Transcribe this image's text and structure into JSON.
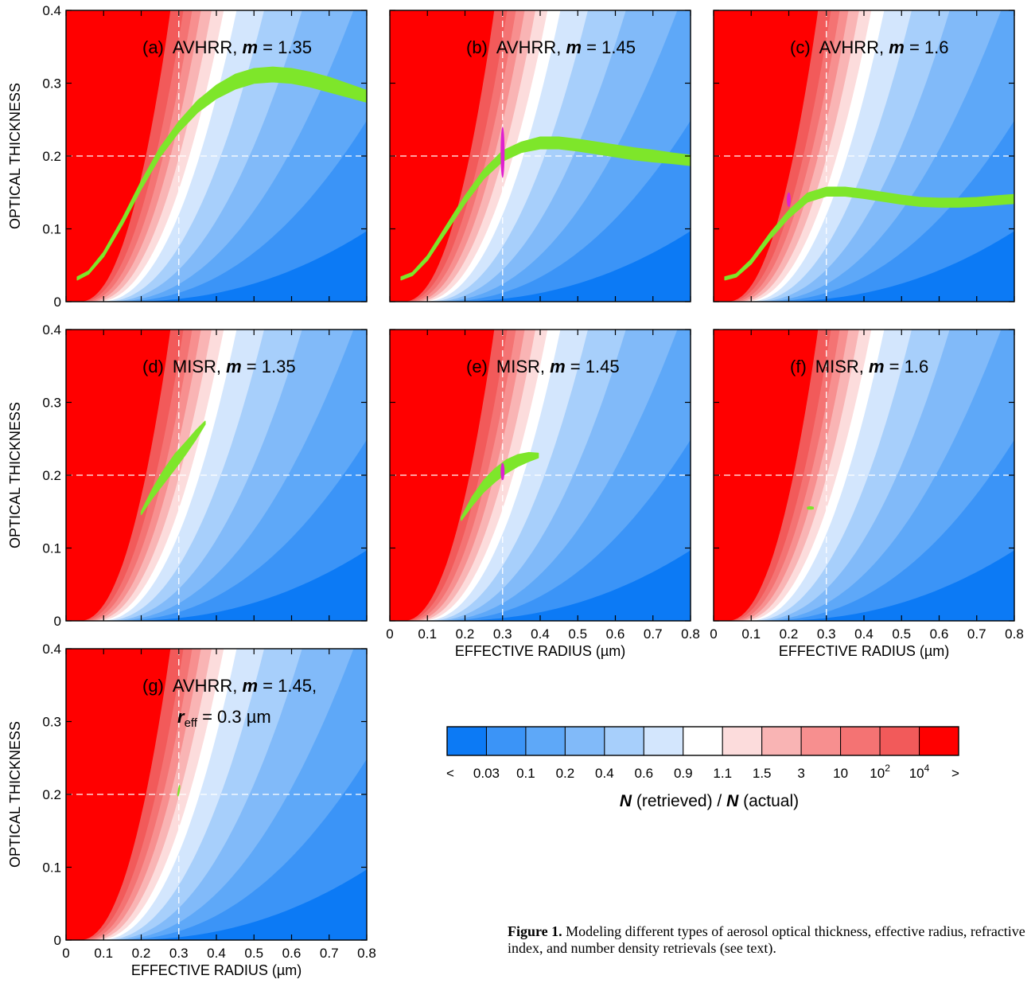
{
  "chart_data": [
    {
      "type": "heatmap",
      "panel_label": "(a)",
      "instrument": "AVHRR",
      "m_symbol": "m",
      "m_value": "= 1.35",
      "xlim": [
        0,
        0.8
      ],
      "ylim": [
        0,
        0.4
      ],
      "ylabel": "OPTICAL THICKNESS",
      "xlabel": "",
      "x_ticks": [],
      "y_ticks": [
        "0",
        "0.1",
        "0.2",
        "0.3",
        "0.4"
      ],
      "true_point": {
        "x": 0.3,
        "y": 0.2
      },
      "retrieved_band": {
        "color": "#7ee62a",
        "x": [
          0.03,
          0.06,
          0.1,
          0.15,
          0.2,
          0.25,
          0.3,
          0.35,
          0.4,
          0.45,
          0.5,
          0.55,
          0.6,
          0.65,
          0.7,
          0.75,
          0.8
        ],
        "y": [
          0.032,
          0.04,
          0.065,
          0.11,
          0.16,
          0.205,
          0.24,
          0.268,
          0.288,
          0.302,
          0.31,
          0.312,
          0.31,
          0.305,
          0.298,
          0.29,
          0.282
        ],
        "half_width": [
          0.002,
          0.002,
          0.003,
          0.004,
          0.005,
          0.006,
          0.007,
          0.008,
          0.009,
          0.01,
          0.01,
          0.01,
          0.01,
          0.01,
          0.01,
          0.009,
          0.008
        ]
      },
      "retrieved_point": null
    },
    {
      "type": "heatmap",
      "panel_label": "(b)",
      "instrument": "AVHRR",
      "m_symbol": "m",
      "m_value": "= 1.45",
      "xlim": [
        0,
        0.8
      ],
      "ylim": [
        0,
        0.4
      ],
      "ylabel": "",
      "xlabel": "",
      "x_ticks": [],
      "y_ticks": [],
      "true_point": {
        "x": 0.3,
        "y": 0.2
      },
      "retrieved_band": {
        "color": "#7ee62a",
        "x": [
          0.03,
          0.06,
          0.1,
          0.15,
          0.2,
          0.25,
          0.3,
          0.35,
          0.4,
          0.45,
          0.5,
          0.55,
          0.6,
          0.65,
          0.7,
          0.75,
          0.8
        ],
        "y": [
          0.032,
          0.038,
          0.06,
          0.1,
          0.14,
          0.175,
          0.2,
          0.212,
          0.218,
          0.218,
          0.215,
          0.211,
          0.207,
          0.203,
          0.2,
          0.197,
          0.194
        ],
        "half_width": [
          0.002,
          0.002,
          0.003,
          0.004,
          0.005,
          0.006,
          0.007,
          0.007,
          0.008,
          0.008,
          0.008,
          0.008,
          0.008,
          0.008,
          0.008,
          0.007,
          0.007
        ]
      },
      "retrieved_point": {
        "x": 0.3,
        "y": 0.205,
        "half_height": 0.035,
        "color": "#e020d0"
      }
    },
    {
      "type": "heatmap",
      "panel_label": "(c)",
      "instrument": "AVHRR",
      "m_symbol": "m",
      "m_value": "= 1.6",
      "xlim": [
        0,
        0.8
      ],
      "ylim": [
        0,
        0.4
      ],
      "ylabel": "",
      "xlabel": "",
      "x_ticks": [],
      "y_ticks": [],
      "true_point": {
        "x": 0.3,
        "y": 0.2
      },
      "retrieved_band": {
        "color": "#7ee62a",
        "x": [
          0.03,
          0.06,
          0.1,
          0.15,
          0.2,
          0.25,
          0.3,
          0.35,
          0.4,
          0.45,
          0.5,
          0.55,
          0.6,
          0.65,
          0.7,
          0.75,
          0.8
        ],
        "y": [
          0.032,
          0.036,
          0.055,
          0.09,
          0.12,
          0.143,
          0.151,
          0.151,
          0.148,
          0.144,
          0.14,
          0.137,
          0.136,
          0.136,
          0.137,
          0.139,
          0.141
        ],
        "half_width": [
          0.002,
          0.002,
          0.003,
          0.004,
          0.005,
          0.006,
          0.006,
          0.006,
          0.006,
          0.006,
          0.006,
          0.006,
          0.006,
          0.006,
          0.006,
          0.006,
          0.006
        ]
      },
      "retrieved_point": {
        "x": 0.2,
        "y": 0.14,
        "half_height": 0.01,
        "color": "#e020d0"
      }
    },
    {
      "type": "heatmap",
      "panel_label": "(d)",
      "instrument": "MISR",
      "m_symbol": "m",
      "m_value": "= 1.35",
      "xlim": [
        0,
        0.8
      ],
      "ylim": [
        0,
        0.4
      ],
      "ylabel": "OPTICAL THICKNESS",
      "xlabel": "",
      "x_ticks": [],
      "y_ticks": [
        "0",
        "0.1",
        "0.2",
        "0.3",
        "0.4"
      ],
      "true_point": {
        "x": 0.3,
        "y": 0.2
      },
      "retrieved_band": {
        "color": "#7ee62a",
        "x": [
          0.2,
          0.23,
          0.26,
          0.29,
          0.32,
          0.345,
          0.37
        ],
        "y": [
          0.148,
          0.175,
          0.198,
          0.219,
          0.238,
          0.255,
          0.272
        ],
        "half_width": [
          0.002,
          0.006,
          0.009,
          0.01,
          0.008,
          0.006,
          0.002
        ]
      },
      "retrieved_point": null
    },
    {
      "type": "heatmap",
      "panel_label": "(e)",
      "instrument": "MISR",
      "m_symbol": "m",
      "m_value": "= 1.45",
      "xlim": [
        0,
        0.8
      ],
      "ylim": [
        0,
        0.4
      ],
      "ylabel": "",
      "xlabel": "EFFECTIVE RADIUS (µm)",
      "x_ticks": [
        "0",
        "0.1",
        "0.2",
        "0.3",
        "0.4",
        "0.5",
        "0.6",
        "0.7",
        "0.8"
      ],
      "y_ticks": [],
      "true_point": {
        "x": 0.3,
        "y": 0.2
      },
      "retrieved_band": {
        "color": "#7ee62a",
        "x": [
          0.19,
          0.22,
          0.25,
          0.28,
          0.31,
          0.34,
          0.37,
          0.395
        ],
        "y": [
          0.14,
          0.165,
          0.185,
          0.2,
          0.212,
          0.22,
          0.225,
          0.227
        ],
        "half_width": [
          0.002,
          0.006,
          0.008,
          0.009,
          0.009,
          0.008,
          0.006,
          0.003
        ]
      },
      "retrieved_point": {
        "x": 0.3,
        "y": 0.205,
        "half_height": 0.012,
        "color": "#e020d0"
      }
    },
    {
      "type": "heatmap",
      "panel_label": "(f)",
      "instrument": "MISR",
      "m_symbol": "m",
      "m_value": "= 1.6",
      "xlim": [
        0,
        0.8
      ],
      "ylim": [
        0,
        0.4
      ],
      "ylabel": "",
      "xlabel": "EFFECTIVE RADIUS (µm)",
      "x_ticks": [
        "0",
        "0.1",
        "0.2",
        "0.3",
        "0.4",
        "0.5",
        "0.6",
        "0.7",
        "0.8"
      ],
      "y_ticks": [],
      "true_point": {
        "x": 0.3,
        "y": 0.2
      },
      "retrieved_band": {
        "color": "#7ee62a",
        "x": [
          0.25,
          0.255,
          0.26,
          0.265
        ],
        "y": [
          0.155,
          0.155,
          0.155,
          0.155
        ],
        "half_width": [
          0.001,
          0.0015,
          0.0015,
          0.001
        ]
      },
      "retrieved_point": null
    },
    {
      "type": "heatmap",
      "panel_label": "(g)",
      "instrument": "AVHRR",
      "m_symbol": "m",
      "m_value": "= 1.45,",
      "reff_line": {
        "symbol": "r",
        "subscript": "eff",
        "value": "= 0.3 µm"
      },
      "xlim": [
        0,
        0.8
      ],
      "ylim": [
        0,
        0.4
      ],
      "ylabel": "OPTICAL THICKNESS",
      "xlabel": "EFFECTIVE RADIUS (µm)",
      "x_ticks": [
        "0",
        "0.1",
        "0.2",
        "0.3",
        "0.4",
        "0.5",
        "0.6",
        "0.7",
        "0.8"
      ],
      "y_ticks": [
        "0",
        "0.1",
        "0.2",
        "0.3",
        "0.4"
      ],
      "true_point": {
        "x": 0.3,
        "y": 0.2
      },
      "retrieved_band": {
        "color": "#7ee62a",
        "x": [
          0.298,
          0.3,
          0.302
        ],
        "y": [
          0.2,
          0.205,
          0.21
        ],
        "half_width": [
          0.002,
          0.003,
          0.002
        ]
      },
      "retrieved_point": null
    }
  ],
  "colorbar": {
    "title_symbol": "N",
    "title_middle": " (retrieved) / ",
    "title_symbol2": "N",
    "title_end": " (actual)",
    "colors": [
      "#0c7af5",
      "#3b94f7",
      "#5ea8f8",
      "#81baf9",
      "#a7cffb",
      "#d3e6fd",
      "#ffffff",
      "#fcdcdc",
      "#f9b4b4",
      "#f78f8f",
      "#f47373",
      "#f25a5a",
      "#ff0000"
    ],
    "labels": [
      "<",
      "0.03",
      "0.1",
      "0.2",
      "0.4",
      "0.6",
      "0.9",
      "1.1",
      "1.5",
      "3",
      "10",
      "10",
      "10",
      ">"
    ],
    "label_superscripts": [
      "",
      "",
      "",
      "",
      "",
      "",
      "",
      "",
      "",
      "",
      "",
      "2",
      "4",
      ""
    ]
  },
  "caption": {
    "label": "Figure 1.",
    "text": "Modeling different types of aerosol optical thickness, effective radius, refractive index, and number density retrievals (see text)."
  }
}
